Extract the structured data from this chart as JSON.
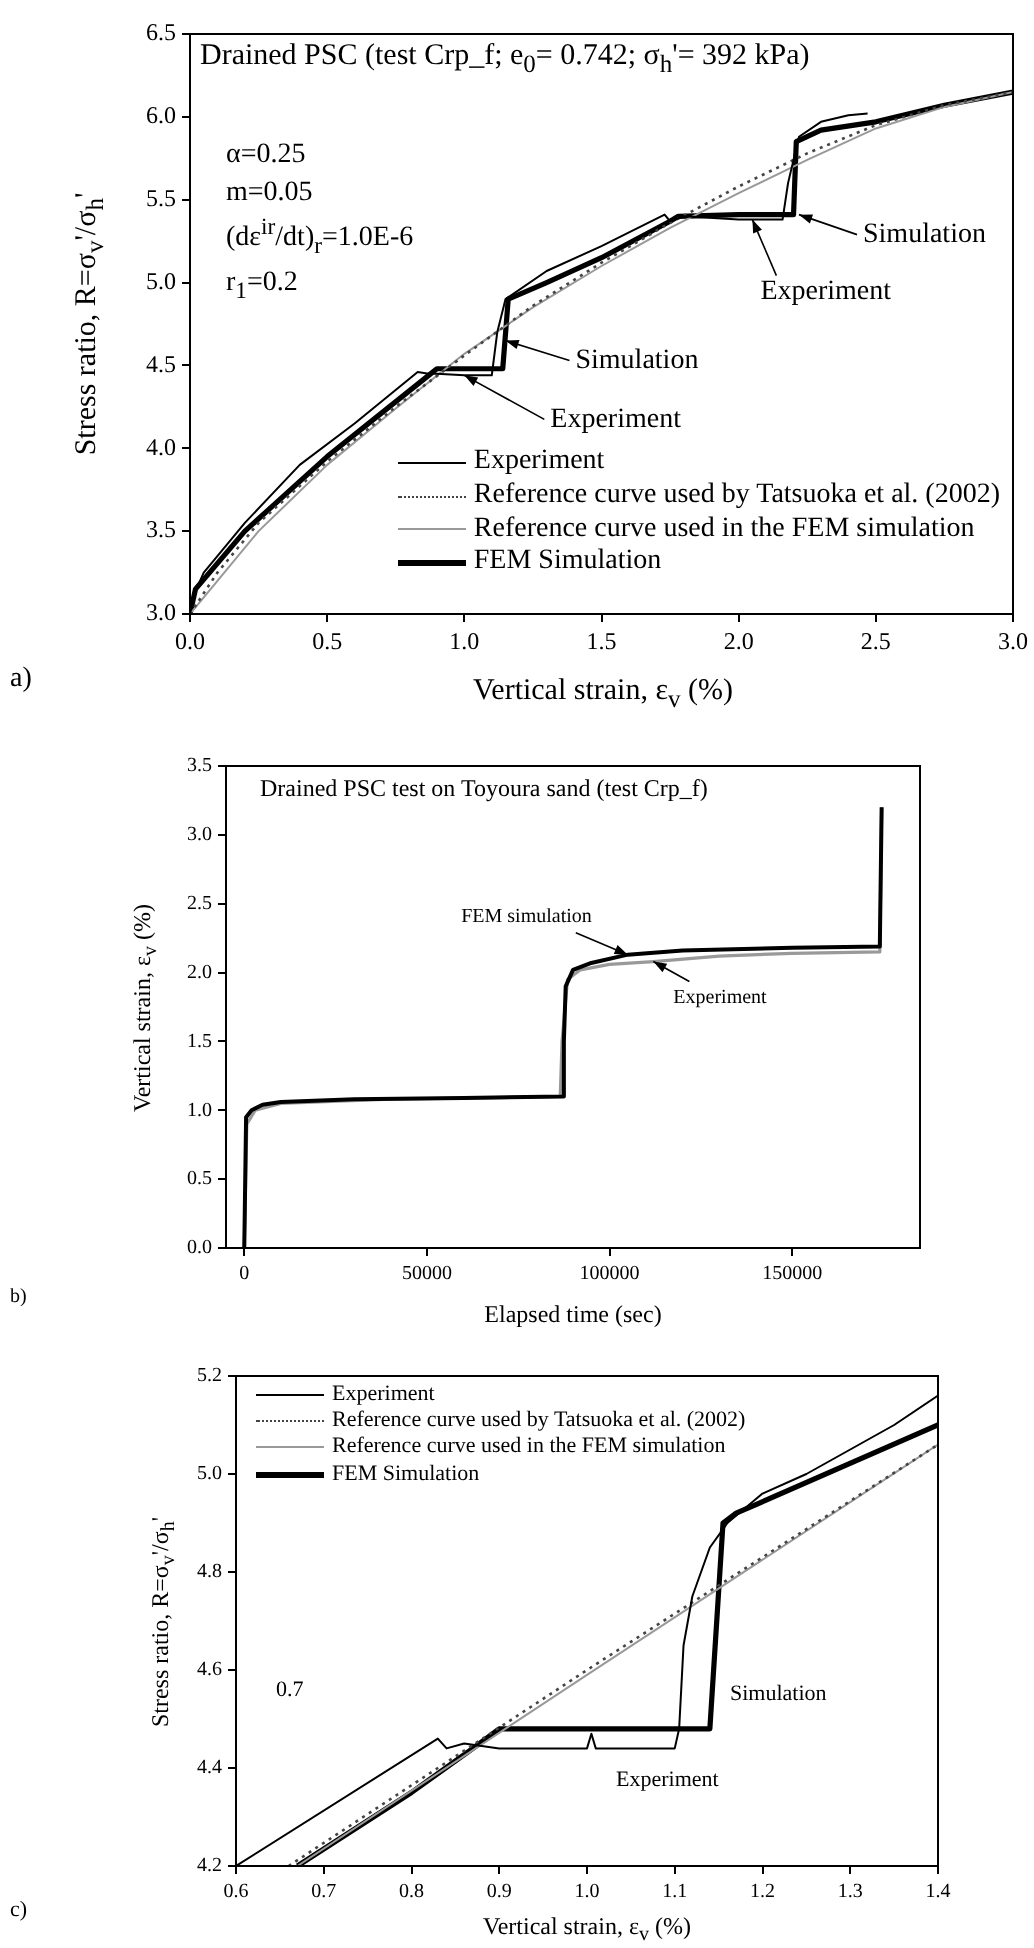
{
  "chart_data": [
    {
      "type": "line",
      "title": "Drained PSC (test Crp_f; e$_{0}$= 0.742; σ$_{h}$'= 392 kPa)",
      "xlabel": "Vertical strain, ε$_{v}$ (%)",
      "ylabel": "Stress ratio, R=σ$_{v}$'/σ$_{h}$'",
      "xlim": [
        0,
        3
      ],
      "ylim": [
        3,
        6.5
      ],
      "xticks": [
        {
          "value": 0,
          "label": "0.0"
        },
        0.5,
        {
          "value": 1,
          "label": "1.0"
        },
        1.5,
        {
          "value": 2,
          "label": "2.0"
        },
        2.5,
        {
          "value": 3,
          "label": "3.0"
        }
      ],
      "yticks": [
        {
          "value": 3,
          "label": "3.0"
        },
        3.5,
        {
          "value": 4,
          "label": "4.0"
        },
        4.5,
        {
          "value": 5,
          "label": "5.0"
        },
        5.5,
        {
          "value": 6,
          "label": "6.0"
        },
        6.5
      ],
      "legend": "bottom right",
      "series": [
        {
          "name": "Experiment",
          "color": "#000000",
          "x": [
            0,
            0.01,
            0.05,
            0.2,
            0.4,
            0.6,
            0.83,
            0.87,
            0.9,
            1.0,
            1.1,
            1.12,
            1.15,
            1.3,
            1.5,
            1.73,
            1.75,
            1.8,
            2.0,
            2.16,
            2.18,
            2.22,
            2.3,
            2.4,
            2.47
          ],
          "values": [
            3.0,
            3.1,
            3.25,
            3.55,
            3.9,
            4.15,
            4.46,
            4.45,
            4.45,
            4.44,
            4.44,
            4.7,
            4.9,
            5.07,
            5.22,
            5.41,
            5.37,
            5.4,
            5.38,
            5.38,
            5.6,
            5.88,
            5.97,
            6.01,
            6.02
          ]
        },
        {
          "name": "Reference curve used by Tatsuoka et al. (2002)",
          "color": "#444444",
          "line_style": "dotted",
          "x": [
            0,
            0.1,
            0.25,
            0.5,
            0.75,
            1.0,
            1.25,
            1.5,
            1.75,
            2.0,
            2.25,
            2.5,
            2.75,
            3.0
          ],
          "values": [
            3.0,
            3.25,
            3.55,
            3.92,
            4.25,
            4.56,
            4.86,
            5.12,
            5.36,
            5.58,
            5.78,
            5.95,
            6.07,
            6.15
          ]
        },
        {
          "name": "Reference curve used in the FEM simulation",
          "color": "#999999",
          "x": [
            0,
            0.1,
            0.25,
            0.5,
            0.75,
            1.0,
            1.25,
            1.5,
            1.75,
            2.0,
            2.25,
            2.5,
            2.75,
            3.0
          ],
          "values": [
            3.0,
            3.2,
            3.5,
            3.9,
            4.24,
            4.57,
            4.85,
            5.1,
            5.33,
            5.54,
            5.74,
            5.93,
            6.06,
            6.15
          ]
        },
        {
          "name": "FEM Simulation",
          "color": "#000000",
          "x": [
            0,
            0.02,
            0.2,
            0.5,
            0.87,
            0.9,
            1.0,
            1.14,
            1.16,
            1.3,
            1.5,
            1.75,
            1.78,
            2.0,
            2.2,
            2.21,
            2.3,
            2.5,
            2.75,
            3.0
          ],
          "values": [
            3.0,
            3.15,
            3.5,
            3.95,
            4.44,
            4.48,
            4.48,
            4.48,
            4.9,
            5.0,
            5.15,
            5.37,
            5.4,
            5.41,
            5.41,
            5.85,
            5.92,
            5.97,
            6.07,
            6.15
          ]
        }
      ],
      "annotations": [
        "α=0.25",
        "m=0.05",
        "(dε$^{ir}$/dt)$_{r}$=1.0E-6",
        "r$_{1}$=0.2",
        "a)",
        {
          "text": "Simulation",
          "x": 1.15,
          "y": 4.65
        },
        {
          "text": "Experiment",
          "x": 1.0,
          "y": 4.44
        },
        {
          "text": "Simulation",
          "x": 2.22,
          "y": 5.41
        },
        {
          "text": "Experiment",
          "x": 2.05,
          "y": 5.38
        }
      ]
    },
    {
      "type": "line",
      "title": "Drained PSC test on Toyoura sand (test Crp_f)",
      "xlabel": "Elapsed time (sec)",
      "ylabel": "Vertical strain, ε$_{v}$ (%)",
      "xlim": [
        -5000,
        185000
      ],
      "ylim": [
        0,
        3.5
      ],
      "xticks": [
        0,
        50000,
        100000,
        150000
      ],
      "yticks": [
        {
          "value": 0,
          "label": "0.0"
        },
        0.5,
        {
          "value": 1,
          "label": "1.0"
        },
        1.5,
        {
          "value": 2,
          "label": "2.0"
        },
        2.5,
        {
          "value": 3,
          "label": "3.0"
        },
        3.5
      ],
      "series": [
        {
          "color": "#000000",
          "x": [
            0,
            500,
            2000,
            5000,
            10000,
            30000,
            60000,
            87000,
            87500,
            88000,
            90000,
            95000,
            105000,
            120000,
            150000,
            174000,
            174500
          ],
          "values": [
            0,
            0.95,
            1.0,
            1.04,
            1.06,
            1.08,
            1.09,
            1.1,
            1.5,
            1.9,
            2.02,
            2.07,
            2.13,
            2.16,
            2.18,
            2.19,
            3.2
          ]
        },
        {
          "color": "#999999",
          "x": [
            0,
            700,
            3000,
            10000,
            40000,
            86500,
            87000,
            88500,
            92000,
            100000,
            112000,
            130000,
            150000,
            174000,
            174500
          ],
          "values": [
            0,
            0.9,
            1.0,
            1.05,
            1.08,
            1.1,
            1.5,
            1.95,
            2.02,
            2.06,
            2.08,
            2.12,
            2.14,
            2.15,
            3.2
          ]
        }
      ],
      "annotations": [
        "b)",
        {
          "text": "FEM simulation",
          "x": 105000,
          "y": 2.13
        },
        {
          "text": "Experiment",
          "x": 112000,
          "y": 2.08
        }
      ]
    },
    {
      "type": "line",
      "xlabel": "Vertical strain, ε$_{v}$ (%)",
      "ylabel": "Stress ratio, R=σ$_{v}$'/σ$_{h}$'",
      "xlim": [
        0.6,
        1.4
      ],
      "ylim": [
        4.2,
        5.2
      ],
      "xticks": [
        0.6,
        0.7,
        0.8,
        0.9,
        {
          "value": 1,
          "label": "1.0"
        },
        1.1,
        1.2,
        1.3,
        1.4
      ],
      "yticks": [
        4.2,
        4.4,
        4.6,
        4.8,
        {
          "value": 5,
          "label": "5.0"
        },
        5.2
      ],
      "legend": "top left",
      "series": [
        {
          "name": "Experiment",
          "color": "#000000",
          "x": [
            0.6,
            0.83,
            0.84,
            0.86,
            0.9,
            0.95,
            1.0,
            1.005,
            1.01,
            1.05,
            1.1,
            1.105,
            1.11,
            1.12,
            1.14,
            1.16,
            1.2,
            1.25,
            1.3,
            1.35,
            1.4
          ],
          "values": [
            4.2,
            4.46,
            4.44,
            4.45,
            4.44,
            4.44,
            4.44,
            4.47,
            4.44,
            4.44,
            4.44,
            4.48,
            4.65,
            4.75,
            4.85,
            4.9,
            4.96,
            5.0,
            5.05,
            5.1,
            5.16
          ]
        },
        {
          "name": "Reference curve used by Tatsuoka et al. (2002)",
          "color": "#444444",
          "line_style": "dotted",
          "x": [
            0.66,
            1.0,
            1.4
          ],
          "values": [
            4.2,
            4.6,
            5.06
          ]
        },
        {
          "name": "Reference curve used in the FEM simulation",
          "color": "#999999",
          "x": [
            0.67,
            1.0,
            1.4
          ],
          "values": [
            4.2,
            4.59,
            5.06
          ]
        },
        {
          "name": "FEM Simulation",
          "color": "#000000",
          "x": [
            0.67,
            0.8,
            0.87,
            0.9,
            1.14,
            1.155,
            1.17,
            1.4
          ],
          "values": [
            4.2,
            4.35,
            4.44,
            4.48,
            4.48,
            4.9,
            4.92,
            5.1
          ]
        }
      ],
      "annotations": [
        "0.7",
        "c)",
        "Simulation",
        "Experiment"
      ]
    }
  ]
}
